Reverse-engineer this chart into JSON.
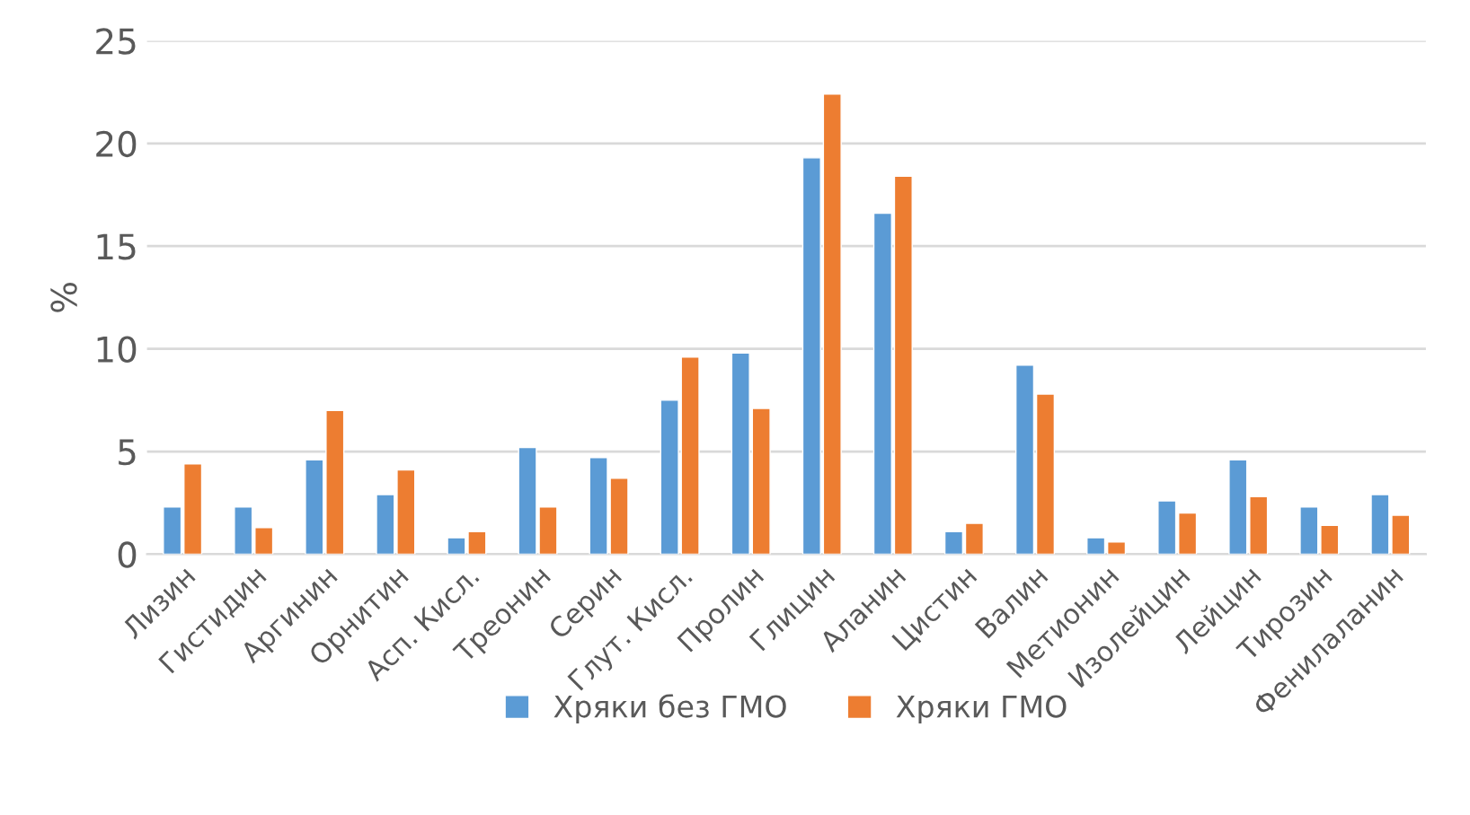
{
  "chart_data": {
    "type": "bar",
    "ylabel": "%",
    "categories": [
      "Лизин",
      "Гистидин",
      "Аргинин",
      "Орнитин",
      "Асп. Кисл.",
      "Треонин",
      "Серин",
      "Глут. Кисл.",
      "Пролин",
      "Глицин",
      "Аланин",
      "Цистин",
      "Валин",
      "Метионин",
      "Изолейцин",
      "Лейцин",
      "Тирозин",
      "Фенилаланин"
    ],
    "series": [
      {
        "name": "Хряки без ГМО",
        "color": "#5b9bd5",
        "values": [
          2.3,
          2.3,
          4.6,
          2.9,
          0.8,
          5.2,
          4.7,
          7.5,
          9.8,
          19.3,
          16.6,
          1.1,
          9.2,
          0.8,
          2.6,
          4.6,
          2.3,
          2.9
        ]
      },
      {
        "name": "Хряки ГМО",
        "color": "#ed7d31",
        "values": [
          4.4,
          1.3,
          7.0,
          4.1,
          1.1,
          2.3,
          3.7,
          9.6,
          7.1,
          22.4,
          18.4,
          1.5,
          7.8,
          0.6,
          2.0,
          2.8,
          1.4,
          1.9
        ]
      }
    ],
    "ylim": [
      0,
      25
    ],
    "yticks": [
      0,
      5,
      10,
      15,
      20,
      25
    ],
    "grid": "y",
    "legend": "bottom"
  }
}
